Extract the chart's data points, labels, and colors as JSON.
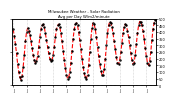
{
  "title": "Milwaukee Weather - Solar Radiation",
  "subtitle": "Avg per Day W/m2/minute",
  "line_color": "#FF0000",
  "line_style": "--",
  "line_width": 0.8,
  "marker": ".",
  "marker_size": 1.5,
  "marker_color": "#000000",
  "background_color": "#FFFFFF",
  "grid_color": "#999999",
  "grid_style": ":",
  "ylim_min": 0,
  "ylim_max": 500,
  "ytick_interval": 50,
  "values": [
    420,
    370,
    310,
    240,
    160,
    100,
    60,
    40,
    70,
    140,
    230,
    330,
    400,
    430,
    410,
    380,
    330,
    280,
    230,
    190,
    170,
    180,
    220,
    290,
    360,
    420,
    450,
    460,
    440,
    390,
    340,
    290,
    240,
    200,
    180,
    190,
    230,
    290,
    360,
    420,
    450,
    460,
    440,
    390,
    330,
    260,
    190,
    130,
    80,
    50,
    60,
    100,
    170,
    260,
    350,
    420,
    460,
    470,
    450,
    400,
    340,
    270,
    200,
    140,
    90,
    60,
    50,
    80,
    150,
    250,
    350,
    430,
    470,
    460,
    420,
    360,
    290,
    220,
    160,
    110,
    80,
    80,
    120,
    200,
    300,
    390,
    450,
    480,
    470,
    440,
    390,
    330,
    270,
    210,
    170,
    160,
    190,
    250,
    320,
    390,
    440,
    460,
    450,
    410,
    360,
    300,
    240,
    190,
    160,
    170,
    230,
    310,
    390,
    450,
    480,
    480,
    450,
    410,
    350,
    280,
    220,
    170,
    150,
    180,
    250,
    340,
    420,
    470,
    490
  ]
}
